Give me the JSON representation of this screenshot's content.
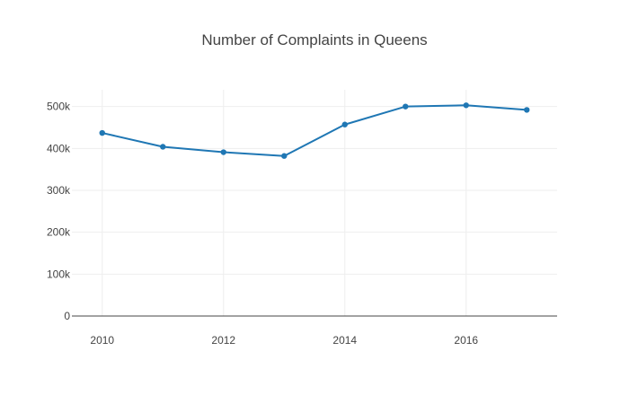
{
  "chart_data": {
    "type": "line",
    "title": "Number of Complaints in Queens",
    "xlabel": "",
    "ylabel": "",
    "x": [
      2010,
      2011,
      2012,
      2013,
      2014,
      2015,
      2016,
      2017
    ],
    "series": [
      {
        "values": [
          437000,
          404000,
          391000,
          382000,
          457000,
          500000,
          503000,
          492000
        ],
        "color": "#1f77b4"
      }
    ],
    "xlim": [
      2009.5,
      2017.5
    ],
    "ylim": [
      0,
      540000
    ],
    "x_ticks": [
      2010,
      2012,
      2014,
      2016
    ],
    "x_tick_labels": [
      "2010",
      "2012",
      "2014",
      "2016"
    ],
    "y_ticks": [
      0,
      100000,
      200000,
      300000,
      400000,
      500000
    ],
    "y_tick_labels": [
      "0",
      "100k",
      "200k",
      "300k",
      "400k",
      "500k"
    ],
    "grid": true,
    "markers": true
  }
}
